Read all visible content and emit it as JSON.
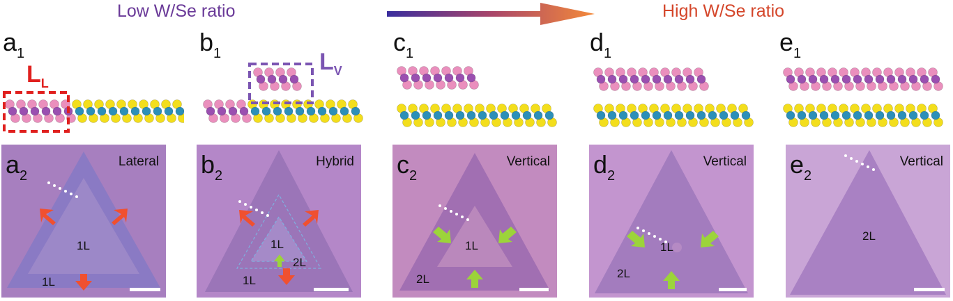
{
  "header": {
    "low_ratio": "Low W/Se ratio",
    "high_ratio": "High W/Se ratio"
  },
  "colors": {
    "low": "#6a3a98",
    "high": "#d4462a",
    "se_atom": "#f3de1c",
    "w_atom": "#2c8fb8",
    "top_layer_pink": "#ea8fbd",
    "top_layer_purple": "#9a4fb0",
    "lateral_box": "#e0201e",
    "vertical_box": "#7b55b2"
  },
  "panels": [
    {
      "top_label": "a",
      "top_sub": "1",
      "bottom_label": "a",
      "bottom_sub": "2",
      "mode": "Lateral",
      "layers": [
        "1L",
        "1L"
      ],
      "arrows": "red"
    },
    {
      "top_label": "b",
      "top_sub": "1",
      "bottom_label": "b",
      "bottom_sub": "2",
      "mode": "Hybrid",
      "layers": [
        "1L",
        "2L",
        "1L"
      ],
      "arrows": "mixed"
    },
    {
      "top_label": "c",
      "top_sub": "1",
      "bottom_label": "c",
      "bottom_sub": "2",
      "mode": "Vertical",
      "layers": [
        "1L",
        "2L"
      ],
      "arrows": "green"
    },
    {
      "top_label": "d",
      "top_sub": "1",
      "bottom_label": "d",
      "bottom_sub": "2",
      "mode": "Vertical",
      "layers": [
        "1L",
        "2L"
      ],
      "arrows": "green"
    },
    {
      "top_label": "e",
      "top_sub": "1",
      "bottom_label": "e",
      "bottom_sub": "2",
      "mode": "Vertical",
      "layers": [
        "2L"
      ],
      "arrows": "none"
    }
  ],
  "annotations": {
    "lateral": {
      "main": "L",
      "sub": "L"
    },
    "vertical": {
      "main": "L",
      "sub": "V"
    }
  }
}
